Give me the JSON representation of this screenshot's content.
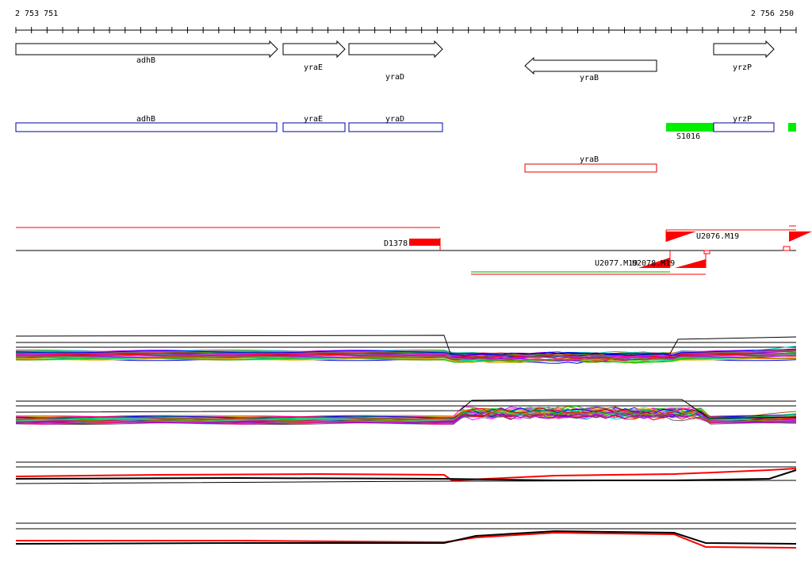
{
  "ruler": {
    "start_label": "2 753 751",
    "end_label": "2 756 250"
  },
  "genes": [
    {
      "name": "adhB",
      "strand": "+"
    },
    {
      "name": "yraE",
      "strand": "+"
    },
    {
      "name": "yraD",
      "strand": "+"
    },
    {
      "name": "yraB",
      "strand": "-"
    },
    {
      "name": "yrzP",
      "strand": "+"
    }
  ],
  "annotation_tracks": {
    "blue_boxes": [
      "adhB",
      "yraE",
      "yraD",
      "yrzP"
    ],
    "red_boxes": [
      "yraB"
    ],
    "green_features": [
      "S1016"
    ]
  },
  "features": {
    "deletion_label": "D1378",
    "upshifts": [
      "U2076.M19",
      "U2077.M19",
      "U2078.M19"
    ]
  },
  "colors": {
    "forward_box": "#0000aa",
    "reverse_box": "#dd0000",
    "feature_green": "#00ee00",
    "feature_red": "#ff0000"
  }
}
